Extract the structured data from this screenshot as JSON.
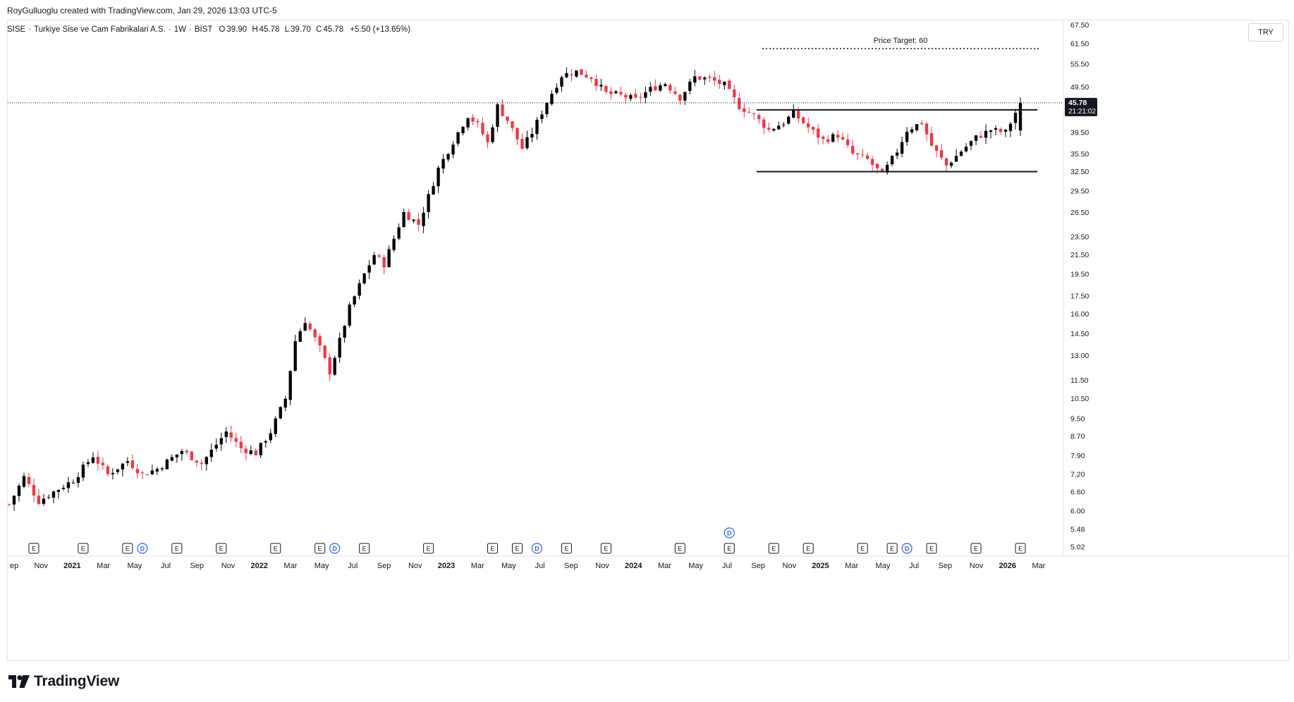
{
  "header": {
    "credit": "RoyGulluoglu created with TradingView.com, Jan 29, 2026 13:03 UTC-5"
  },
  "symbol": {
    "ticker": "SISE",
    "name": "Turkiye Sise ve Cam Fabrikalari A.S.",
    "interval": "1W",
    "exchange": "BIST",
    "open_label": "O",
    "open": "39.90",
    "high_label": "H",
    "high": "45.78",
    "low_label": "L",
    "low": "39.70",
    "close_label": "C",
    "close": "45.78",
    "change": "+5.50 (+13.65%)"
  },
  "currency": "TRY",
  "brand": {
    "logo_text": "TradingView"
  },
  "colors": {
    "up": "#000000",
    "down": "#f23645",
    "event_earnings": "#131722",
    "event_dividend": "#2962ff",
    "event_split": "#089981",
    "last_price_bg": "#131722"
  },
  "chart_data": {
    "type": "candlestick",
    "timeframe": "weekly",
    "scale": "log",
    "ylim": [
      5.0,
      69.0
    ],
    "y_ticks": [
      "67.50",
      "61.50",
      "55.50",
      "49.50",
      "45.50",
      "39.50",
      "35.50",
      "32.50",
      "29.50",
      "26.50",
      "23.50",
      "21.50",
      "19.50",
      "17.50",
      "16.00",
      "14.50",
      "13.00",
      "11.50",
      "10.50",
      "9.50",
      "8.70",
      "7.90",
      "7.20",
      "6.60",
      "6.00",
      "5.48",
      "5.02"
    ],
    "x_ticks": [
      {
        "label": "ep",
        "year": false
      },
      {
        "label": "Nov",
        "year": false
      },
      {
        "label": "2021",
        "year": true
      },
      {
        "label": "Mar",
        "year": false
      },
      {
        "label": "May",
        "year": false
      },
      {
        "label": "Jul",
        "year": false
      },
      {
        "label": "Sep",
        "year": false
      },
      {
        "label": "Nov",
        "year": false
      },
      {
        "label": "2022",
        "year": true
      },
      {
        "label": "Mar",
        "year": false
      },
      {
        "label": "May",
        "year": false
      },
      {
        "label": "Jul",
        "year": false
      },
      {
        "label": "Sep",
        "year": false
      },
      {
        "label": "Nov",
        "year": false
      },
      {
        "label": "2023",
        "year": true
      },
      {
        "label": "Mar",
        "year": false
      },
      {
        "label": "May",
        "year": false
      },
      {
        "label": "Jul",
        "year": false
      },
      {
        "label": "Sep",
        "year": false
      },
      {
        "label": "Nov",
        "year": false
      },
      {
        "label": "2024",
        "year": true
      },
      {
        "label": "Mar",
        "year": false
      },
      {
        "label": "May",
        "year": false
      },
      {
        "label": "Jul",
        "year": false
      },
      {
        "label": "Sep",
        "year": false
      },
      {
        "label": "Nov",
        "year": false
      },
      {
        "label": "2025",
        "year": true
      },
      {
        "label": "Mar",
        "year": false
      },
      {
        "label": "May",
        "year": false
      },
      {
        "label": "Jul",
        "year": false
      },
      {
        "label": "Sep",
        "year": false
      },
      {
        "label": "Nov",
        "year": false
      },
      {
        "label": "2026",
        "year": true
      },
      {
        "label": "Mar",
        "year": false
      }
    ],
    "price_path": [
      [
        0,
        6.2
      ],
      [
        3,
        7.1
      ],
      [
        6,
        6.3
      ],
      [
        9,
        6.6
      ],
      [
        13,
        7.0
      ],
      [
        17,
        7.9
      ],
      [
        20,
        7.2
      ],
      [
        24,
        7.7
      ],
      [
        27,
        7.2
      ],
      [
        30,
        7.4
      ],
      [
        35,
        8.1
      ],
      [
        39,
        7.6
      ],
      [
        44,
        8.9
      ],
      [
        47,
        8.2
      ],
      [
        50,
        8.0
      ],
      [
        53,
        8.9
      ],
      [
        56,
        10.5
      ],
      [
        58,
        14.0
      ],
      [
        60,
        15.5
      ],
      [
        63,
        13.5
      ],
      [
        65,
        12.0
      ],
      [
        67,
        14.0
      ],
      [
        69,
        16.5
      ],
      [
        72,
        19.5
      ],
      [
        74,
        21.5
      ],
      [
        76,
        20.5
      ],
      [
        80,
        26.5
      ],
      [
        83,
        25.0
      ],
      [
        87,
        33.0
      ],
      [
        91,
        39.5
      ],
      [
        93,
        43.0
      ],
      [
        95,
        41.0
      ],
      [
        97,
        37.5
      ],
      [
        99,
        45.0
      ],
      [
        101,
        42.0
      ],
      [
        104,
        36.5
      ],
      [
        106,
        39.5
      ],
      [
        109,
        46.0
      ],
      [
        112,
        52.5
      ],
      [
        115,
        53.5
      ],
      [
        118,
        52.0
      ],
      [
        121,
        48.0
      ],
      [
        124,
        47.5
      ],
      [
        127,
        46.5
      ],
      [
        130,
        49.0
      ],
      [
        133,
        50.5
      ],
      [
        136,
        47.0
      ],
      [
        139,
        52.0
      ],
      [
        142,
        51.5
      ],
      [
        145,
        50.0
      ],
      [
        148,
        45.0
      ],
      [
        151,
        43.0
      ],
      [
        154,
        40.0
      ],
      [
        157,
        41.5
      ],
      [
        159,
        43.5
      ],
      [
        162,
        40.5
      ],
      [
        165,
        38.0
      ],
      [
        168,
        39.0
      ],
      [
        171,
        35.5
      ],
      [
        174,
        34.5
      ],
      [
        177,
        32.0
      ],
      [
        180,
        36.0
      ],
      [
        182,
        40.0
      ],
      [
        185,
        41.5
      ],
      [
        187,
        37.0
      ],
      [
        190,
        33.5
      ],
      [
        193,
        36.0
      ],
      [
        196,
        38.5
      ],
      [
        199,
        40.0
      ],
      [
        202,
        39.5
      ],
      [
        205,
        45.78
      ]
    ],
    "drawings": {
      "price_target_label": "Price Target: 60",
      "price_target": 60,
      "resistance": 44.2,
      "support": 32.5
    },
    "last_price": {
      "value": "45.78",
      "countdown": "21:21:02"
    },
    "events": [
      {
        "type": "E",
        "bar": 5
      },
      {
        "type": "E",
        "bar": 15
      },
      {
        "type": "E",
        "bar": 24
      },
      {
        "type": "D",
        "bar": 27
      },
      {
        "type": "E",
        "bar": 34
      },
      {
        "type": "E",
        "bar": 43
      },
      {
        "type": "E",
        "bar": 54
      },
      {
        "type": "E",
        "bar": 63
      },
      {
        "type": "D",
        "bar": 66
      },
      {
        "type": "E",
        "bar": 72
      },
      {
        "type": "E",
        "bar": 85
      },
      {
        "type": "E",
        "bar": 98
      },
      {
        "type": "E",
        "bar": 103
      },
      {
        "type": "D",
        "bar": 107
      },
      {
        "type": "E",
        "bar": 113
      },
      {
        "type": "E",
        "bar": 121
      },
      {
        "type": "E",
        "bar": 136
      },
      {
        "type": "E",
        "bar": 146
      },
      {
        "type": "D",
        "bar": 146
      },
      {
        "type": "E",
        "bar": 155
      },
      {
        "type": "E",
        "bar": 162
      },
      {
        "type": "E",
        "bar": 173
      },
      {
        "type": "E",
        "bar": 179
      },
      {
        "type": "D",
        "bar": 182
      },
      {
        "type": "E",
        "bar": 187
      },
      {
        "type": "E",
        "bar": 196
      },
      {
        "type": "E",
        "bar": 205
      }
    ]
  }
}
